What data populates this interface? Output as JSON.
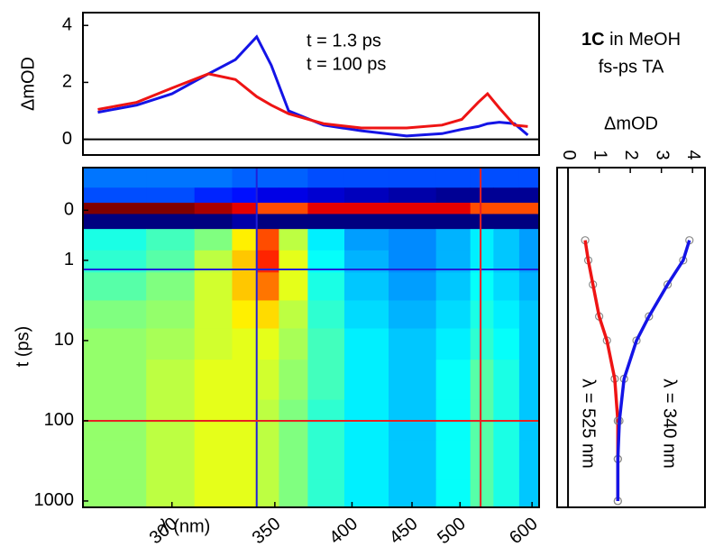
{
  "chart_data": [
    {
      "type": "line",
      "ylabel": "ΔmOD",
      "xscale": "reciprocal",
      "xlim": [
        267,
        612
      ],
      "ylim": [
        -0.55,
        4.45
      ],
      "yticks": [
        0,
        2,
        4
      ],
      "x": [
        272,
        286,
        300,
        316,
        329,
        340,
        348,
        358,
        380,
        407,
        445,
        480,
        502,
        522,
        534,
        550,
        572,
        593
      ],
      "series": [
        {
          "name": "t = 1.3 ps",
          "color": "#1414e6",
          "values": [
            0.95,
            1.2,
            1.6,
            2.3,
            2.8,
            3.6,
            2.6,
            1.0,
            0.5,
            0.3,
            0.12,
            0.2,
            0.35,
            0.45,
            0.55,
            0.6,
            0.55,
            0.15
          ]
        },
        {
          "name": "t = 100 ps",
          "color": "#ee1414",
          "values": [
            1.05,
            1.3,
            1.8,
            2.3,
            2.1,
            1.5,
            1.2,
            0.9,
            0.55,
            0.4,
            0.4,
            0.5,
            0.7,
            1.3,
            1.6,
            1.1,
            0.5,
            0.45
          ]
        }
      ]
    },
    {
      "type": "heatmap",
      "xlabel": "λ (nm)",
      "ylabel": "t (ps)",
      "xscale": "reciprocal",
      "yscale": "symlog",
      "yinvert": true,
      "xlim": [
        267,
        612
      ],
      "ylim": [
        -0.85,
        1200
      ],
      "xticks": [
        300,
        350,
        400,
        450,
        500,
        600
      ],
      "yticks": [
        0,
        1,
        10,
        100,
        1000
      ],
      "colormap": "jet",
      "clim": [
        -1,
        4
      ],
      "x": [
        280,
        300,
        320,
        335,
        345,
        360,
        380,
        410,
        450,
        500,
        525,
        560,
        600
      ],
      "y": [
        -0.6,
        -0.3,
        0,
        0.15,
        0.6,
        1,
        2,
        5,
        10,
        30,
        100,
        300,
        1000
      ],
      "z": [
        [
          0.2,
          0.2,
          0.2,
          0.1,
          0.1,
          0.1,
          0,
          0,
          0,
          0,
          0,
          0,
          0
        ],
        [
          0,
          0,
          -0.2,
          -0.3,
          -0.5,
          -0.5,
          -0.6,
          -0.7,
          -0.8,
          -0.9,
          -0.9,
          -0.9,
          -0.9
        ],
        [
          4,
          4,
          3.8,
          3.5,
          3,
          3,
          3.5,
          3.5,
          3.5,
          3.5,
          3,
          3,
          3
        ],
        [
          -1,
          -1,
          -1,
          -0.8,
          -1,
          -1,
          -1,
          -1,
          -1,
          -1,
          -1,
          -1,
          -1
        ],
        [
          1.0,
          1.2,
          1.5,
          2.2,
          3.0,
          1.8,
          0.8,
          0.4,
          0.3,
          0.5,
          0.8,
          0.6,
          0.4
        ],
        [
          1.1,
          1.3,
          1.8,
          2.4,
          3.2,
          2.0,
          0.9,
          0.5,
          0.3,
          0.5,
          0.8,
          0.6,
          0.4
        ],
        [
          1.3,
          1.5,
          1.9,
          2.4,
          2.8,
          2.0,
          1.0,
          0.6,
          0.4,
          0.6,
          0.9,
          0.7,
          0.5
        ],
        [
          1.5,
          1.6,
          1.9,
          2.2,
          2.3,
          1.8,
          1.1,
          0.7,
          0.5,
          0.7,
          1.0,
          0.8,
          0.6
        ],
        [
          1.6,
          1.7,
          1.9,
          2.0,
          2.0,
          1.7,
          1.2,
          0.8,
          0.6,
          0.8,
          1.1,
          0.9,
          0.6
        ],
        [
          1.6,
          1.8,
          2.0,
          2.0,
          1.9,
          1.6,
          1.2,
          0.8,
          0.6,
          0.9,
          1.3,
          1.0,
          0.6
        ],
        [
          1.6,
          1.8,
          2.0,
          2.0,
          1.8,
          1.5,
          1.1,
          0.8,
          0.6,
          0.9,
          1.3,
          1.0,
          0.6
        ],
        [
          1.6,
          1.8,
          2.0,
          2.0,
          1.8,
          1.5,
          1.1,
          0.8,
          0.6,
          0.9,
          1.3,
          1.0,
          0.6
        ],
        [
          1.6,
          1.8,
          2.0,
          2.0,
          1.8,
          1.5,
          1.1,
          0.8,
          0.6,
          0.9,
          1.3,
          1.0,
          0.6
        ]
      ],
      "cuts": [
        {
          "x": 340,
          "t": 1.3,
          "color": "#2020d8"
        },
        {
          "x": 525,
          "t": 100,
          "color": "#e82020"
        }
      ]
    },
    {
      "type": "line",
      "orientation": "horizontal",
      "title_bold": "1C",
      "title": "in MeOH",
      "subtitle": "fs-ps TA",
      "xlabel": "ΔmOD",
      "xlim": [
        -0.35,
        4.4
      ],
      "xticks": [
        0,
        1,
        2,
        3,
        4
      ],
      "yscale": "symlog",
      "yinvert": true,
      "ylim": [
        -0.85,
        1200
      ],
      "marker_color": "#8a8a8a",
      "t": [
        0.6,
        1,
        2,
        5,
        10,
        30,
        100,
        300,
        1000
      ],
      "series": [
        {
          "name": "λ = 525 nm",
          "color": "#ee1414",
          "values": [
            0.55,
            0.65,
            0.8,
            1.0,
            1.25,
            1.5,
            1.6,
            1.6,
            1.6
          ]
        },
        {
          "name": "λ = 340 nm",
          "color": "#1414e6",
          "values": [
            3.9,
            3.7,
            3.2,
            2.6,
            2.2,
            1.8,
            1.65,
            1.6,
            1.6
          ]
        }
      ]
    }
  ]
}
